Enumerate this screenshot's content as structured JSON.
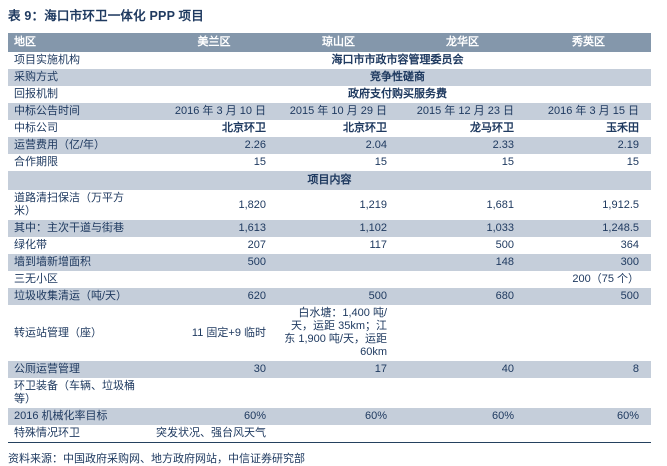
{
  "title": "表 9：海口市环卫一体化 PPP 项目",
  "colors": {
    "text_navy": "#1F3A60",
    "header_bg": "#8497AB",
    "band_bg": "#C5CEDA",
    "bottom_rule": "#24415F",
    "header_text": "#FFFFFF"
  },
  "table": {
    "columns": [
      "地区",
      "美兰区",
      "琼山区",
      "龙华区",
      "秀英区"
    ],
    "rows": [
      {
        "label": "项目实施机构",
        "span": "海口市市政市容管理委员会"
      },
      {
        "label": "采购方式",
        "span": "竞争性磋商"
      },
      {
        "label": "回报机制",
        "span": "政府支付购买服务费"
      },
      {
        "label": "中标公告时间",
        "values": [
          "2016 年 3 月 10 日",
          "2015 年 10 月 29 日",
          "2015 年 12 月 23 日",
          "2016 年 3 月 15 日"
        ]
      },
      {
        "label": "中标公司",
        "values": [
          "北京环卫",
          "北京环卫",
          "龙马环卫",
          "玉禾田"
        ],
        "bold": true
      },
      {
        "label": "运营费用（亿/年）",
        "values": [
          "2.26",
          "2.04",
          "2.33",
          "2.19"
        ]
      },
      {
        "label": "合作期限",
        "values": [
          "15",
          "15",
          "15",
          "15"
        ]
      },
      {
        "section": "项目内容"
      },
      {
        "label": "道路清扫保洁（万平方米）",
        "values": [
          "1,820",
          "1,219",
          "1,681",
          "1,912.5"
        ]
      },
      {
        "label": "其中：主次干道与街巷",
        "values": [
          "1,613",
          "1,102",
          "1,033",
          "1,248.5"
        ]
      },
      {
        "label": "绿化带",
        "values": [
          "207",
          "117",
          "500",
          "364"
        ]
      },
      {
        "label": "墙到墙新增面积",
        "values": [
          "500",
          "",
          "148",
          "300"
        ]
      },
      {
        "label": "三无小区",
        "values": [
          "",
          "",
          "",
          "200（75 个）"
        ]
      },
      {
        "label": "垃圾收集清运（吨/天）",
        "values": [
          "620",
          "500",
          "680",
          "500"
        ]
      },
      {
        "label": "转运站管理（座）",
        "values": [
          "11 固定+9 临时",
          "白水塘：1,400 吨/天，运距 35km；江东 1,900 吨/天，运距 60km",
          "",
          ""
        ]
      },
      {
        "label": "公厕运营管理",
        "values": [
          "30",
          "17",
          "40",
          "8"
        ]
      },
      {
        "label": "环卫装备（车辆、垃圾桶等）",
        "values": [
          "",
          "",
          "",
          ""
        ]
      },
      {
        "label": "2016 机械化率目标",
        "values": [
          "60%",
          "60%",
          "60%",
          "60%"
        ]
      },
      {
        "label": "特殊情况环卫",
        "left_span": "突发状况、强台风天气"
      }
    ]
  },
  "footer": {
    "source": "资料来源：中国政府采购网、地方政府网站，中信证券研究部"
  }
}
